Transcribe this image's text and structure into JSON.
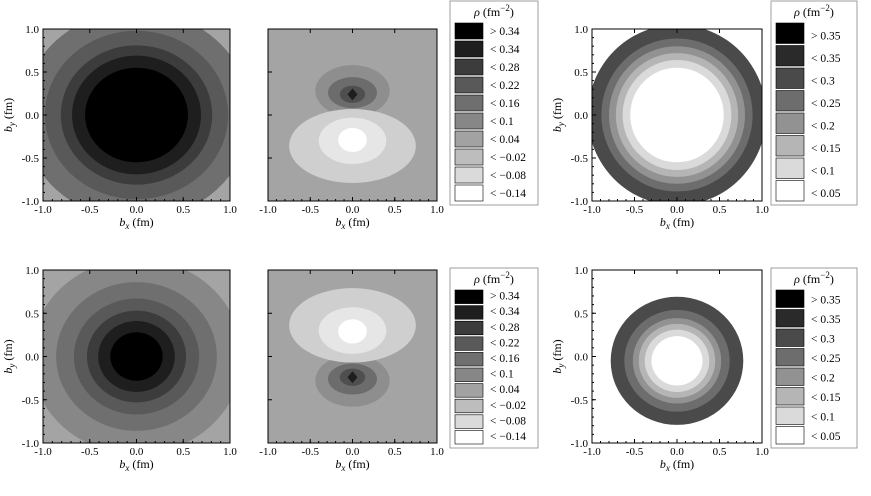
{
  "figure": {
    "palettes": {
      "eleven": [
        "#000000",
        "#1e1e1e",
        "#3c3c3c",
        "#595959",
        "#6f6f6f",
        "#878787",
        "#a2a2a2",
        "#bdbdbd",
        "#dadada",
        "#ffffff"
      ],
      "eight": [
        "#000000",
        "#2a2a2a",
        "#4a4a4a",
        "#6d6d6d",
        "#929292",
        "#b5b5b5",
        "#dadada",
        "#ffffff"
      ],
      "background_flat": "#a4a4a4"
    }
  },
  "chart_data": [
    {
      "type": "heatmap",
      "panel": "row1-col1",
      "description_shape": "axially symmetric, centered at origin",
      "xlabel": "b_x (fm)",
      "ylabel": "b_y (fm)",
      "xlim": [
        -1.0,
        1.0
      ],
      "ylim": [
        -1.0,
        1.0
      ],
      "xticks": [
        "-1.0",
        "-0.5",
        "0.0",
        "0.5",
        "1.0"
      ],
      "yticks": [
        "-1.0",
        "-0.5",
        "0.0",
        "0.5",
        "1.0"
      ],
      "center": [
        0.0,
        0.0
      ],
      "contour_radii": [
        0.55,
        0.69,
        0.81,
        0.98,
        1.22
      ],
      "contour_levels": [
        9,
        8,
        7,
        6,
        5
      ],
      "background_level": 4,
      "palette": "eleven"
    },
    {
      "type": "heatmap",
      "panel": "row1-col2",
      "xlabel": "b_x (fm)",
      "xlim": [
        -1.0,
        1.0
      ],
      "ylim": [
        -1.0,
        1.0
      ],
      "xticks": [
        "-1.0",
        "-0.5",
        "0.0",
        "0.5",
        "1.0"
      ],
      "background_level": 4,
      "palette": "eleven",
      "legend": {
        "title": "ρ (fm",
        "title_superscript": "−2",
        "title_close": ")",
        "entries": [
          "> 0.34",
          "< 0.34",
          "< 0.28",
          "< 0.22",
          "< 0.16",
          "< 0.1",
          "< 0.04",
          "< −0.02",
          "< −0.08",
          "< −0.14"
        ]
      },
      "dipole_orientation": "positive-up"
    },
    {
      "type": "heatmap",
      "panel": "row1-col3",
      "xlabel": "b_x (fm)",
      "ylabel": "b_y (fm)",
      "xlim": [
        -1.0,
        1.0
      ],
      "ylim": [
        -1.0,
        1.0
      ],
      "xticks": [
        "-1.0",
        "-0.5",
        "0.0",
        "0.5",
        "1.0"
      ],
      "yticks": [
        "-1.0",
        "-0.5",
        "0.0",
        "0.5",
        "1.0"
      ],
      "center": [
        0.0,
        0.0
      ],
      "contour_radii": [
        0.55,
        0.64,
        0.72,
        0.8,
        0.89,
        1.05
      ],
      "contour_levels": [
        7,
        6,
        5,
        4,
        3,
        2
      ],
      "outside_level": 0,
      "palette": "eight",
      "legend": {
        "title": "ρ (fm",
        "title_superscript": "−2",
        "title_close": ")",
        "entries": [
          "> 0.35",
          "< 0.35",
          "< 0.3",
          "< 0.25",
          "< 0.2",
          "< 0.15",
          "< 0.1",
          "< 0.05"
        ]
      }
    },
    {
      "type": "heatmap",
      "panel": "row2-col1",
      "xlabel": "b_x (fm)",
      "ylabel": "b_y (fm)",
      "xlim": [
        -1.0,
        1.0
      ],
      "ylim": [
        -1.0,
        1.0
      ],
      "xticks": [
        "-1.0",
        "-0.5",
        "0.0",
        "0.5",
        "1.0"
      ],
      "yticks": [
        "-1.0",
        "-0.5",
        "0.0",
        "0.5",
        "1.0"
      ],
      "center": [
        0.0,
        0.0
      ],
      "contour_radii": [
        0.28,
        0.41,
        0.53,
        0.67,
        0.86,
        1.13
      ],
      "contour_levels": [
        9,
        8,
        7,
        6,
        5,
        4
      ],
      "background_level": 4,
      "palette": "eleven"
    },
    {
      "type": "heatmap",
      "panel": "row2-col2",
      "xlabel": "b_x (fm)",
      "xlim": [
        -1.0,
        1.0
      ],
      "ylim": [
        -1.0,
        1.0
      ],
      "xticks": [
        "-1.0",
        "-0.5",
        "0.0",
        "0.5",
        "1.0"
      ],
      "background_level": 4,
      "palette": "eleven",
      "legend": {
        "title": "ρ (fm",
        "title_superscript": "−2",
        "title_close": ")",
        "entries": [
          "> 0.34",
          "< 0.34",
          "< 0.28",
          "< 0.22",
          "< 0.16",
          "< 0.1",
          "< 0.04",
          "< −0.02",
          "< −0.08",
          "< −0.14"
        ]
      },
      "dipole_orientation": "positive-down"
    },
    {
      "type": "heatmap",
      "panel": "row2-col3",
      "xlabel": "b_x (fm)",
      "ylabel": "b_y (fm)",
      "xlim": [
        -1.0,
        1.0
      ],
      "ylim": [
        -1.0,
        1.0
      ],
      "xticks": [
        "-1.0",
        "-0.5",
        "0.0",
        "0.5",
        "1.0"
      ],
      "yticks": [
        "-1.0",
        "-0.5",
        "0.0",
        "0.5",
        "1.0"
      ],
      "center": [
        0.0,
        -0.05
      ],
      "contour_radii": [
        0.3,
        0.38,
        0.45,
        0.52,
        0.62,
        0.78
      ],
      "contour_levels": [
        7,
        6,
        5,
        4,
        3,
        2
      ],
      "outside_level": 0,
      "palette": "eight",
      "legend": {
        "title": "ρ (fm",
        "title_superscript": "−2",
        "title_close": ")",
        "entries": [
          "> 0.35",
          "< 0.35",
          "< 0.3",
          "< 0.25",
          "< 0.2",
          "< 0.15",
          "< 0.1",
          "< 0.05"
        ]
      }
    }
  ]
}
